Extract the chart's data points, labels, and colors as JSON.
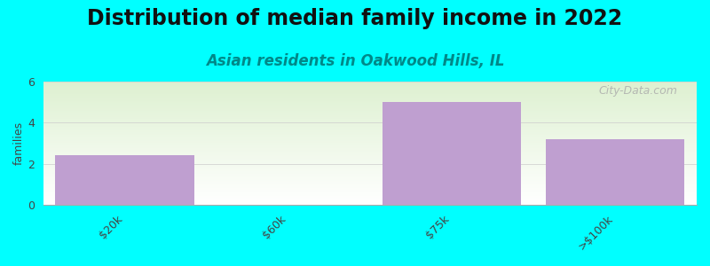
{
  "title": "Distribution of median family income in 2022",
  "subtitle": "Asian residents in Oakwood Hills, IL",
  "categories": [
    "$20k",
    "$60k",
    "$75k",
    ">$100k"
  ],
  "values": [
    2.4,
    0,
    5.0,
    3.2
  ],
  "bar_color": "#bf9fd0",
  "background_color": "#00ffff",
  "plot_bg_top": "#ddf0d0",
  "plot_bg_bottom": "#ffffff",
  "ylabel": "families",
  "ylim": [
    0,
    6
  ],
  "yticks": [
    0,
    2,
    4,
    6
  ],
  "watermark": "City-Data.com",
  "title_fontsize": 17,
  "subtitle_fontsize": 12,
  "bar_width": 0.85
}
